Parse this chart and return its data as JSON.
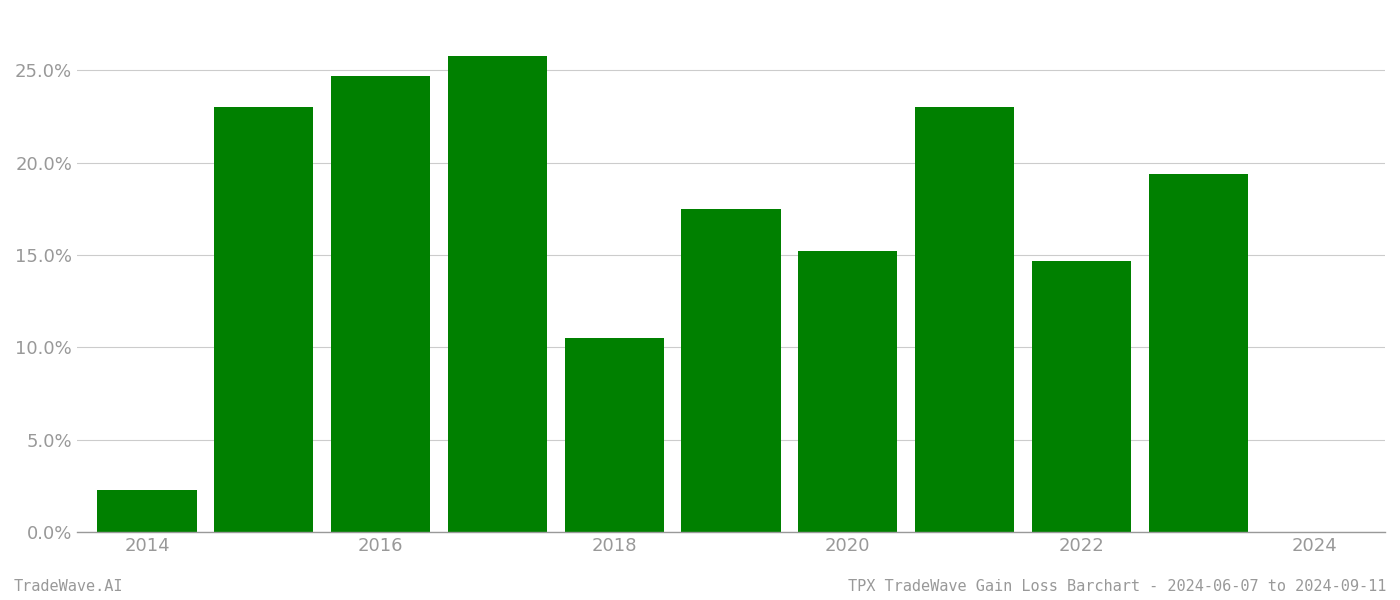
{
  "years": [
    2014,
    2015,
    2016,
    2017,
    2018,
    2019,
    2020,
    2021,
    2022,
    2023
  ],
  "values": [
    0.023,
    0.23,
    0.247,
    0.258,
    0.105,
    0.175,
    0.152,
    0.23,
    0.147,
    0.194
  ],
  "bar_color": "#008000",
  "background_color": "#ffffff",
  "grid_color": "#cccccc",
  "axis_color": "#999999",
  "tick_color": "#999999",
  "ylim": [
    0,
    0.28
  ],
  "yticks": [
    0.0,
    0.05,
    0.1,
    0.15,
    0.2,
    0.25
  ],
  "xlim": [
    2013.4,
    2024.6
  ],
  "xticks": [
    2014,
    2016,
    2018,
    2020,
    2022,
    2024
  ],
  "footer_left": "TradeWave.AI",
  "footer_right": "TPX TradeWave Gain Loss Barchart - 2024-06-07 to 2024-09-11",
  "footer_color": "#999999",
  "footer_fontsize": 11,
  "bar_width": 0.85,
  "tick_fontsize": 13
}
